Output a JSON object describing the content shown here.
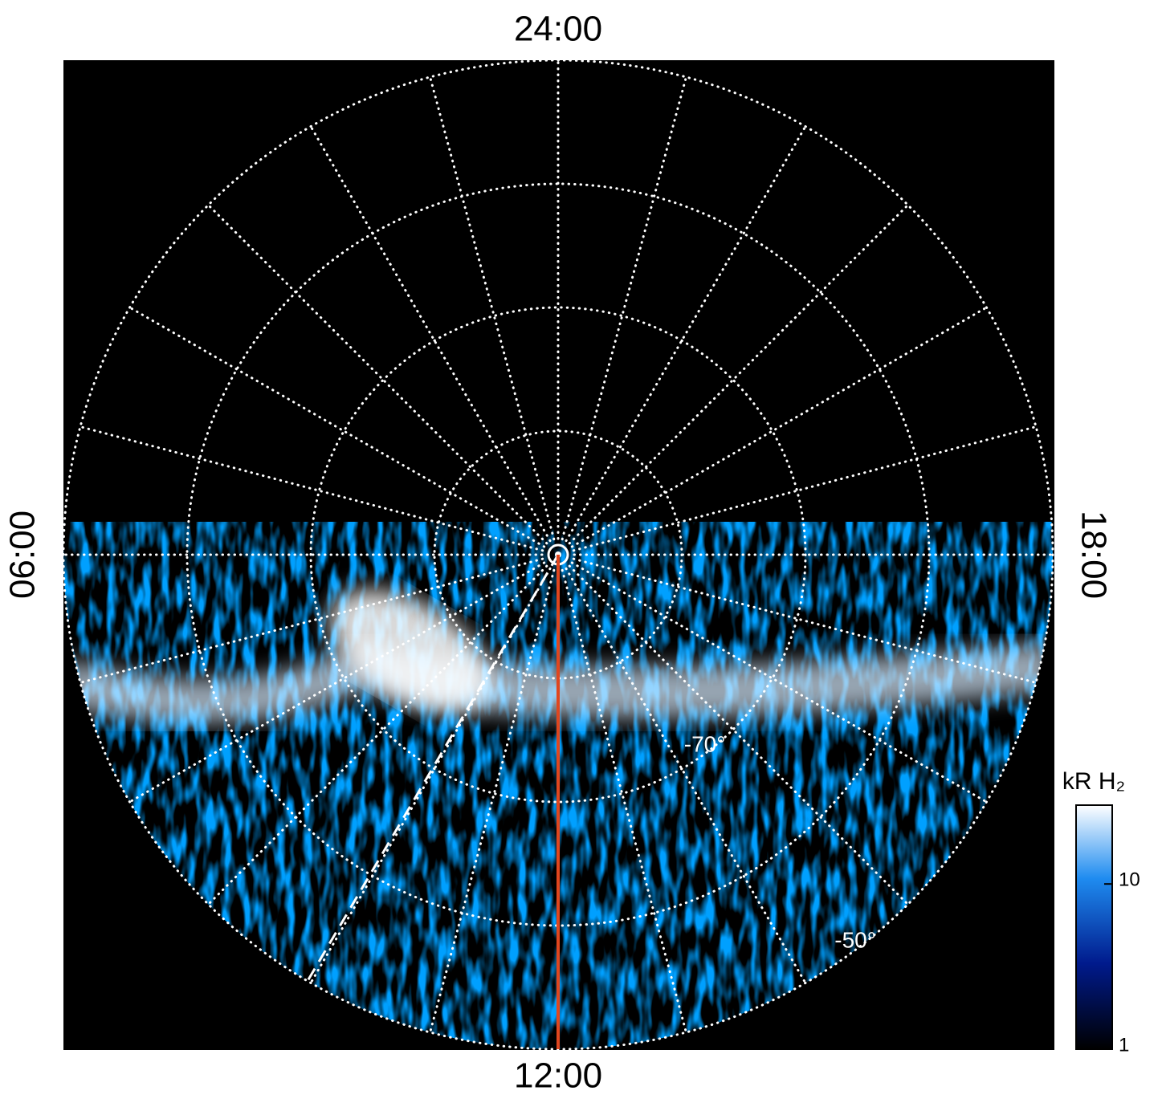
{
  "chart_data": {
    "type": "polar",
    "rlim": [
      -90,
      -50
    ],
    "rticks": [
      -80,
      -70,
      -60,
      -50
    ],
    "hour_ticks": [
      0,
      1,
      2,
      3,
      4,
      5,
      6,
      7,
      8,
      9,
      10,
      11,
      12,
      13,
      14,
      15,
      16,
      17,
      18,
      19,
      20,
      21,
      22,
      23
    ],
    "hour_labels": [
      {
        "value": 0,
        "label": "24:00"
      },
      {
        "value": 6,
        "label": "06:00"
      },
      {
        "value": 12,
        "label": "12:00"
      },
      {
        "value": 18,
        "label": "18:00"
      }
    ],
    "latitude_labels": [
      {
        "value": -70,
        "label": "-70°"
      },
      {
        "value": -50,
        "label": "-50°"
      }
    ],
    "meridian_color": "#e0461e",
    "grid": true,
    "colorbar": {
      "label": "kR H₂",
      "scale": "log",
      "clim": [
        1,
        30
      ],
      "ticks": [
        1,
        10
      ]
    }
  }
}
